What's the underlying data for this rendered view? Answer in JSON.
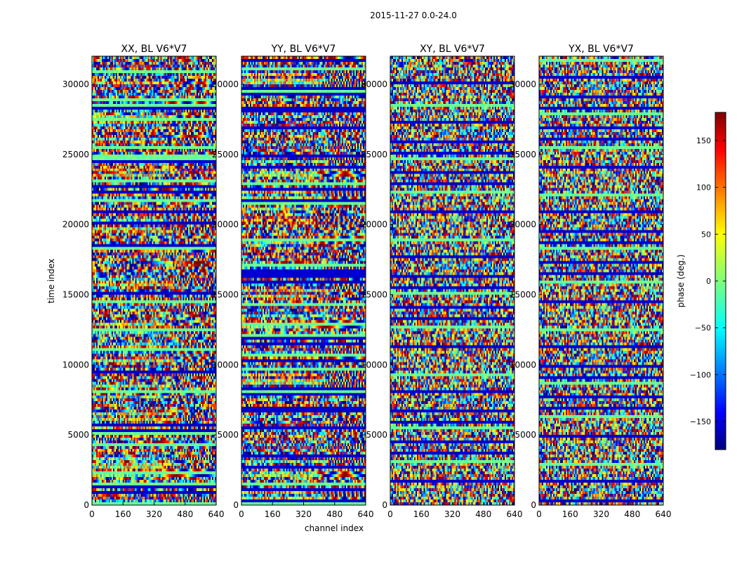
{
  "figure": {
    "suptitle": "2015-11-27 0.0-24.0"
  },
  "chart_data": {
    "type": "heatmap",
    "suptitle": "2015-11-27 0.0-24.0",
    "xlabel": "channel index",
    "ylabel": "time index",
    "xlim": [
      0,
      640
    ],
    "ylim": [
      0,
      32000
    ],
    "xticks": [
      0,
      160,
      320,
      480,
      640
    ],
    "yticks": [
      0,
      5000,
      10000,
      15000,
      20000,
      25000,
      30000
    ],
    "colormap": "jet",
    "colorbar": {
      "label": "phase (deg.)",
      "range": [
        -180,
        180
      ],
      "ticks": [
        150,
        100,
        50,
        0,
        -50,
        -100,
        -150
      ],
      "tick_labels": [
        "150",
        "100",
        "50",
        "0",
        "−50",
        "−100",
        "−150"
      ]
    },
    "panels": [
      {
        "title": "XX, BL V6*V7"
      },
      {
        "title": "YY, BL V6*V7"
      },
      {
        "title": "XY, BL V6*V7"
      },
      {
        "title": "YX, BL V6*V7"
      }
    ]
  }
}
